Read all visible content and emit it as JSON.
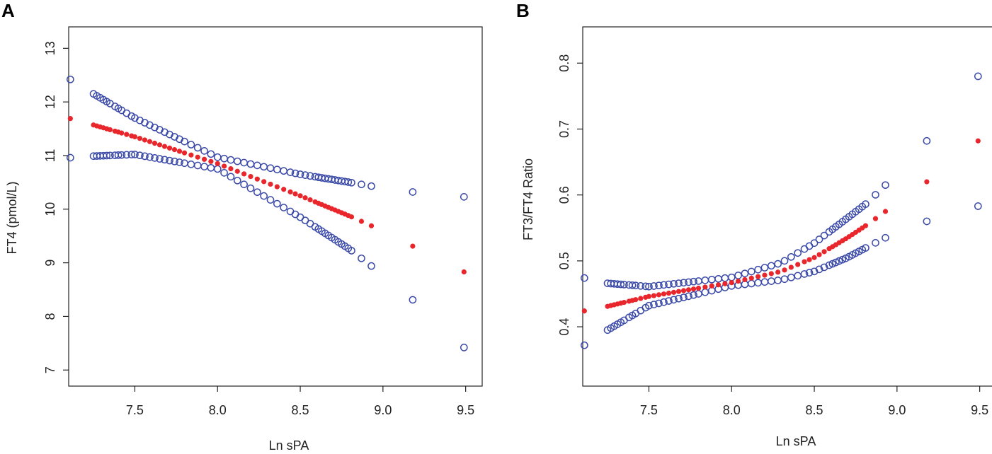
{
  "chart_data": [
    {
      "type": "scatter",
      "panel_label": "A",
      "title": "",
      "xlabel": "Ln sPA",
      "ylabel": "FT4 (pmol/L)",
      "xlim": [
        7.1,
        9.6
      ],
      "ylim": [
        6.7,
        13.4
      ],
      "xticks": [
        7.5,
        8.0,
        8.5,
        9.0,
        9.5
      ],
      "xtick_labels": [
        "7.5",
        "8.0",
        "8.5",
        "9.0",
        "9.5"
      ],
      "yticks": [
        7,
        8,
        9,
        10,
        11,
        12,
        13
      ],
      "ytick_labels": [
        "7",
        "8",
        "9",
        "10",
        "11",
        "12",
        "13"
      ],
      "grid": false,
      "legend": false,
      "colors": {
        "fit": "#e8262b",
        "ci": "#3b4aa8"
      },
      "sample_x": [
        7.11,
        7.25,
        7.27,
        7.29,
        7.31,
        7.33,
        7.35,
        7.38,
        7.4,
        7.42,
        7.45,
        7.48,
        7.5,
        7.53,
        7.56,
        7.59,
        7.62,
        7.65,
        7.68,
        7.71,
        7.74,
        7.77,
        7.8,
        7.84,
        7.88,
        7.92,
        7.96,
        8.0,
        8.04,
        8.08,
        8.12,
        8.16,
        8.2,
        8.24,
        8.28,
        8.32,
        8.36,
        8.4,
        8.44,
        8.47,
        8.5,
        8.53,
        8.56,
        8.59,
        8.61,
        8.63,
        8.65,
        8.67,
        8.69,
        8.71,
        8.73,
        8.75,
        8.77,
        8.79,
        8.81,
        8.87,
        8.93,
        9.18,
        9.49
      ],
      "series": [
        {
          "name": "Upper 95% CI",
          "style": "open-circle",
          "anchors_x": [
            7.11,
            7.25,
            7.5,
            8.0,
            8.5,
            8.8,
            8.93,
            9.18,
            9.49
          ],
          "anchors_y": [
            12.42,
            12.15,
            11.7,
            10.97,
            10.65,
            10.5,
            10.43,
            10.32,
            10.23
          ]
        },
        {
          "name": "Fitted",
          "style": "filled-dot",
          "anchors_x": [
            7.11,
            7.25,
            7.5,
            8.0,
            8.5,
            8.8,
            8.93,
            9.18,
            9.49
          ],
          "anchors_y": [
            11.69,
            11.57,
            11.35,
            10.85,
            10.25,
            9.87,
            9.69,
            9.31,
            8.83
          ]
        },
        {
          "name": "Lower 95% CI",
          "style": "open-circle",
          "anchors_x": [
            7.11,
            7.25,
            7.5,
            8.0,
            8.5,
            8.8,
            8.93,
            9.18,
            9.49
          ],
          "anchors_y": [
            10.96,
            10.99,
            11.02,
            10.75,
            9.85,
            9.25,
            8.94,
            8.31,
            7.42
          ]
        }
      ]
    },
    {
      "type": "scatter",
      "panel_label": "B",
      "title": "",
      "xlabel": "Ln sPA",
      "ylabel": "FT3/FT4 Ratio",
      "xlim": [
        7.1,
        9.6
      ],
      "ylim": [
        0.31,
        0.855
      ],
      "xticks": [
        7.5,
        8.0,
        8.5,
        9.0,
        9.5
      ],
      "xtick_labels": [
        "7.5",
        "8.0",
        "8.5",
        "9.0",
        "9.5"
      ],
      "yticks": [
        0.4,
        0.5,
        0.6,
        0.7,
        0.8
      ],
      "ytick_labels": [
        "0.4",
        "0.5",
        "0.6",
        "0.7",
        "0.8"
      ],
      "grid": false,
      "legend": false,
      "colors": {
        "fit": "#e8262b",
        "ci": "#3b4aa8"
      },
      "sample_x": [
        7.11,
        7.25,
        7.27,
        7.29,
        7.31,
        7.33,
        7.35,
        7.38,
        7.4,
        7.42,
        7.45,
        7.48,
        7.5,
        7.53,
        7.56,
        7.59,
        7.62,
        7.65,
        7.68,
        7.71,
        7.74,
        7.77,
        7.8,
        7.84,
        7.88,
        7.92,
        7.96,
        8.0,
        8.04,
        8.08,
        8.12,
        8.16,
        8.2,
        8.24,
        8.28,
        8.32,
        8.36,
        8.4,
        8.44,
        8.47,
        8.5,
        8.53,
        8.56,
        8.59,
        8.61,
        8.63,
        8.65,
        8.67,
        8.69,
        8.71,
        8.73,
        8.75,
        8.77,
        8.79,
        8.81,
        8.87,
        8.93,
        9.18,
        9.49
      ],
      "series": [
        {
          "name": "Upper 95% CI",
          "style": "open-circle",
          "anchors_x": [
            7.11,
            7.25,
            7.5,
            8.0,
            8.3,
            8.5,
            8.7,
            8.82,
            8.93,
            9.18,
            9.49
          ],
          "anchors_y": [
            0.474,
            0.466,
            0.461,
            0.475,
            0.497,
            0.527,
            0.565,
            0.588,
            0.615,
            0.682,
            0.78
          ]
        },
        {
          "name": "Fitted",
          "style": "filled-dot",
          "anchors_x": [
            7.11,
            7.25,
            7.5,
            8.0,
            8.3,
            8.5,
            8.7,
            8.82,
            8.93,
            9.18,
            9.49
          ],
          "anchors_y": [
            0.424,
            0.431,
            0.446,
            0.467,
            0.484,
            0.505,
            0.535,
            0.555,
            0.575,
            0.62,
            0.682
          ]
        },
        {
          "name": "Lower 95% CI",
          "style": "open-circle",
          "anchors_x": [
            7.11,
            7.25,
            7.5,
            8.0,
            8.3,
            8.5,
            8.7,
            8.82,
            8.93,
            9.18,
            9.49
          ],
          "anchors_y": [
            0.372,
            0.395,
            0.432,
            0.462,
            0.471,
            0.484,
            0.505,
            0.521,
            0.535,
            0.56,
            0.583
          ]
        }
      ]
    }
  ]
}
